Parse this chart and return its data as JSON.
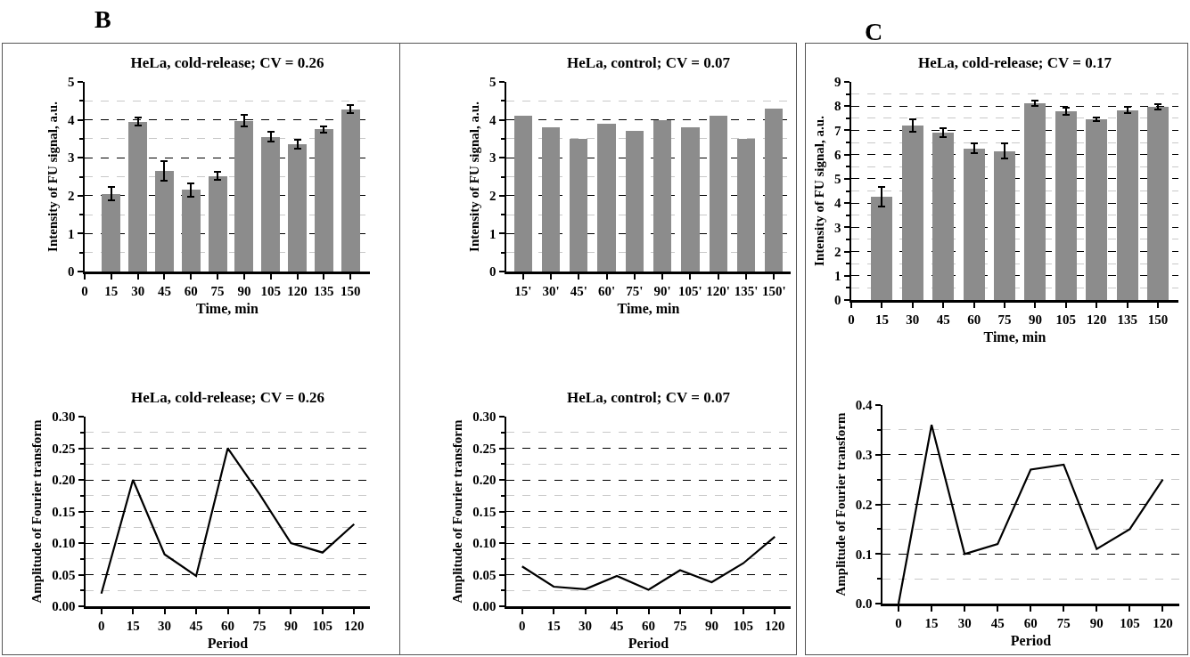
{
  "chart_data": [
    {
      "type": "bar",
      "title": "HeLa, cold-release; CV = 0.26",
      "xlabel": "Time, min",
      "ylabel": "Intensity of FU signal, a.u.",
      "annotations": [
        "B"
      ],
      "x": [
        15,
        30,
        45,
        60,
        75,
        90,
        105,
        120,
        135,
        150
      ],
      "values": [
        2.05,
        3.95,
        2.65,
        2.15,
        2.52,
        3.97,
        3.55,
        3.35,
        3.75,
        4.28
      ],
      "errors": [
        0.17,
        0.1,
        0.25,
        0.18,
        0.1,
        0.15,
        0.13,
        0.12,
        0.08,
        0.1
      ],
      "color": "#8c8c8c",
      "xlim": [
        0,
        161
      ],
      "xticks": [
        0,
        15,
        30,
        45,
        60,
        75,
        90,
        105,
        120,
        135,
        150
      ],
      "ylim": [
        0,
        5
      ],
      "yticks": [
        0,
        1,
        2,
        3,
        4,
        5
      ],
      "grid": "y"
    },
    {
      "type": "bar",
      "title": "HeLa, control; CV = 0.07",
      "xlabel": "Time, min",
      "ylabel": "Intensity of FU signal, a.u.",
      "categories": [
        "15'",
        "30'",
        "45'",
        "60'",
        "75'",
        "90'",
        "105'",
        "120'",
        "135'",
        "150'"
      ],
      "values": [
        4.1,
        3.8,
        3.5,
        3.9,
        3.7,
        4.0,
        3.8,
        4.1,
        3.5,
        4.3
      ],
      "color": "#8c8c8c",
      "ylim": [
        0,
        5
      ],
      "yticks": [
        0,
        1,
        2,
        3,
        4,
        5
      ],
      "grid": "y"
    },
    {
      "type": "bar",
      "title": "HeLa, cold-release; CV = 0.17",
      "xlabel": "Time, min",
      "ylabel": "Intensity of FU signal, a.u.",
      "annotations": [
        "C"
      ],
      "x": [
        15,
        30,
        45,
        60,
        75,
        90,
        105,
        120,
        135,
        150
      ],
      "values": [
        4.25,
        7.2,
        6.9,
        6.25,
        6.15,
        8.12,
        7.78,
        7.45,
        7.83,
        7.97
      ],
      "errors": [
        0.4,
        0.25,
        0.18,
        0.2,
        0.3,
        0.12,
        0.15,
        0.07,
        0.13,
        0.1
      ],
      "color": "#8c8c8c",
      "xlim": [
        0,
        160
      ],
      "xticks": [
        0,
        15,
        30,
        45,
        60,
        75,
        90,
        105,
        120,
        135,
        150
      ],
      "ylim": [
        0,
        9
      ],
      "yticks": [
        0,
        1,
        2,
        3,
        4,
        5,
        6,
        7,
        8,
        9
      ],
      "grid": "y"
    },
    {
      "type": "line",
      "title": "HeLa, cold-release; CV = 0.26",
      "xlabel": "Period",
      "ylabel": "Amplitude of Fourier transform",
      "x": [
        0,
        15,
        30,
        45,
        60,
        75,
        90,
        105,
        120
      ],
      "values": [
        0.02,
        0.2,
        0.082,
        0.048,
        0.25,
        0.178,
        0.1,
        0.085,
        0.13
      ],
      "color": "#000000",
      "marker": "none",
      "line_style": "solid",
      "xlim": [
        -7.5,
        127.5
      ],
      "xticks": [
        0,
        15,
        30,
        45,
        60,
        75,
        90,
        105,
        120
      ],
      "ylim": [
        0,
        0.3
      ],
      "yticks": [
        {
          "value": 0,
          "label": "0.00"
        },
        {
          "value": 0.05,
          "label": "0.05"
        },
        {
          "value": 0.1,
          "label": "0.10"
        },
        {
          "value": 0.15,
          "label": "0.15"
        },
        {
          "value": 0.2,
          "label": "0.20"
        },
        {
          "value": 0.25,
          "label": "0.25"
        },
        {
          "value": 0.3,
          "label": "0.30"
        }
      ],
      "grid": "y"
    },
    {
      "type": "line",
      "title": "HeLa, control; CV = 0.07",
      "xlabel": "Period",
      "ylabel": "Amplitude of Fourier transform",
      "x": [
        0,
        15,
        30,
        45,
        60,
        75,
        90,
        105,
        120
      ],
      "values": [
        0.063,
        0.031,
        0.027,
        0.048,
        0.026,
        0.057,
        0.038,
        0.068,
        0.11
      ],
      "color": "#000000",
      "marker": "none",
      "line_style": "solid",
      "xlim": [
        -7.5,
        127.5
      ],
      "xticks": [
        0,
        15,
        30,
        45,
        60,
        75,
        90,
        105,
        120
      ],
      "ylim": [
        0,
        0.3
      ],
      "yticks": [
        {
          "value": 0,
          "label": "0.00"
        },
        {
          "value": 0.05,
          "label": "0.05"
        },
        {
          "value": 0.1,
          "label": "0.10"
        },
        {
          "value": 0.15,
          "label": "0.15"
        },
        {
          "value": 0.2,
          "label": "0.20"
        },
        {
          "value": 0.25,
          "label": "0.25"
        },
        {
          "value": 0.3,
          "label": "0.30"
        }
      ],
      "grid": "y"
    },
    {
      "type": "line",
      "xlabel": "Period",
      "ylabel": "Amplitude of Fourier transform",
      "x": [
        0,
        15,
        30,
        45,
        60,
        75,
        90,
        105,
        120
      ],
      "values": [
        0.0,
        0.36,
        0.1,
        0.12,
        0.27,
        0.28,
        0.11,
        0.15,
        0.25
      ],
      "color": "#000000",
      "marker": "none",
      "line_style": "solid",
      "xlim": [
        -7.3,
        127.5
      ],
      "xticks": [
        0,
        15,
        30,
        45,
        60,
        75,
        90,
        105,
        120
      ],
      "ylim": [
        0,
        0.4
      ],
      "yticks": [
        {
          "value": 0,
          "label": "0.0"
        },
        {
          "value": 0.1,
          "label": "0.1"
        },
        {
          "value": 0.2,
          "label": "0.2"
        },
        {
          "value": 0.3,
          "label": "0.3"
        },
        {
          "value": 0.4,
          "label": "0.4"
        }
      ],
      "grid": "y"
    }
  ]
}
